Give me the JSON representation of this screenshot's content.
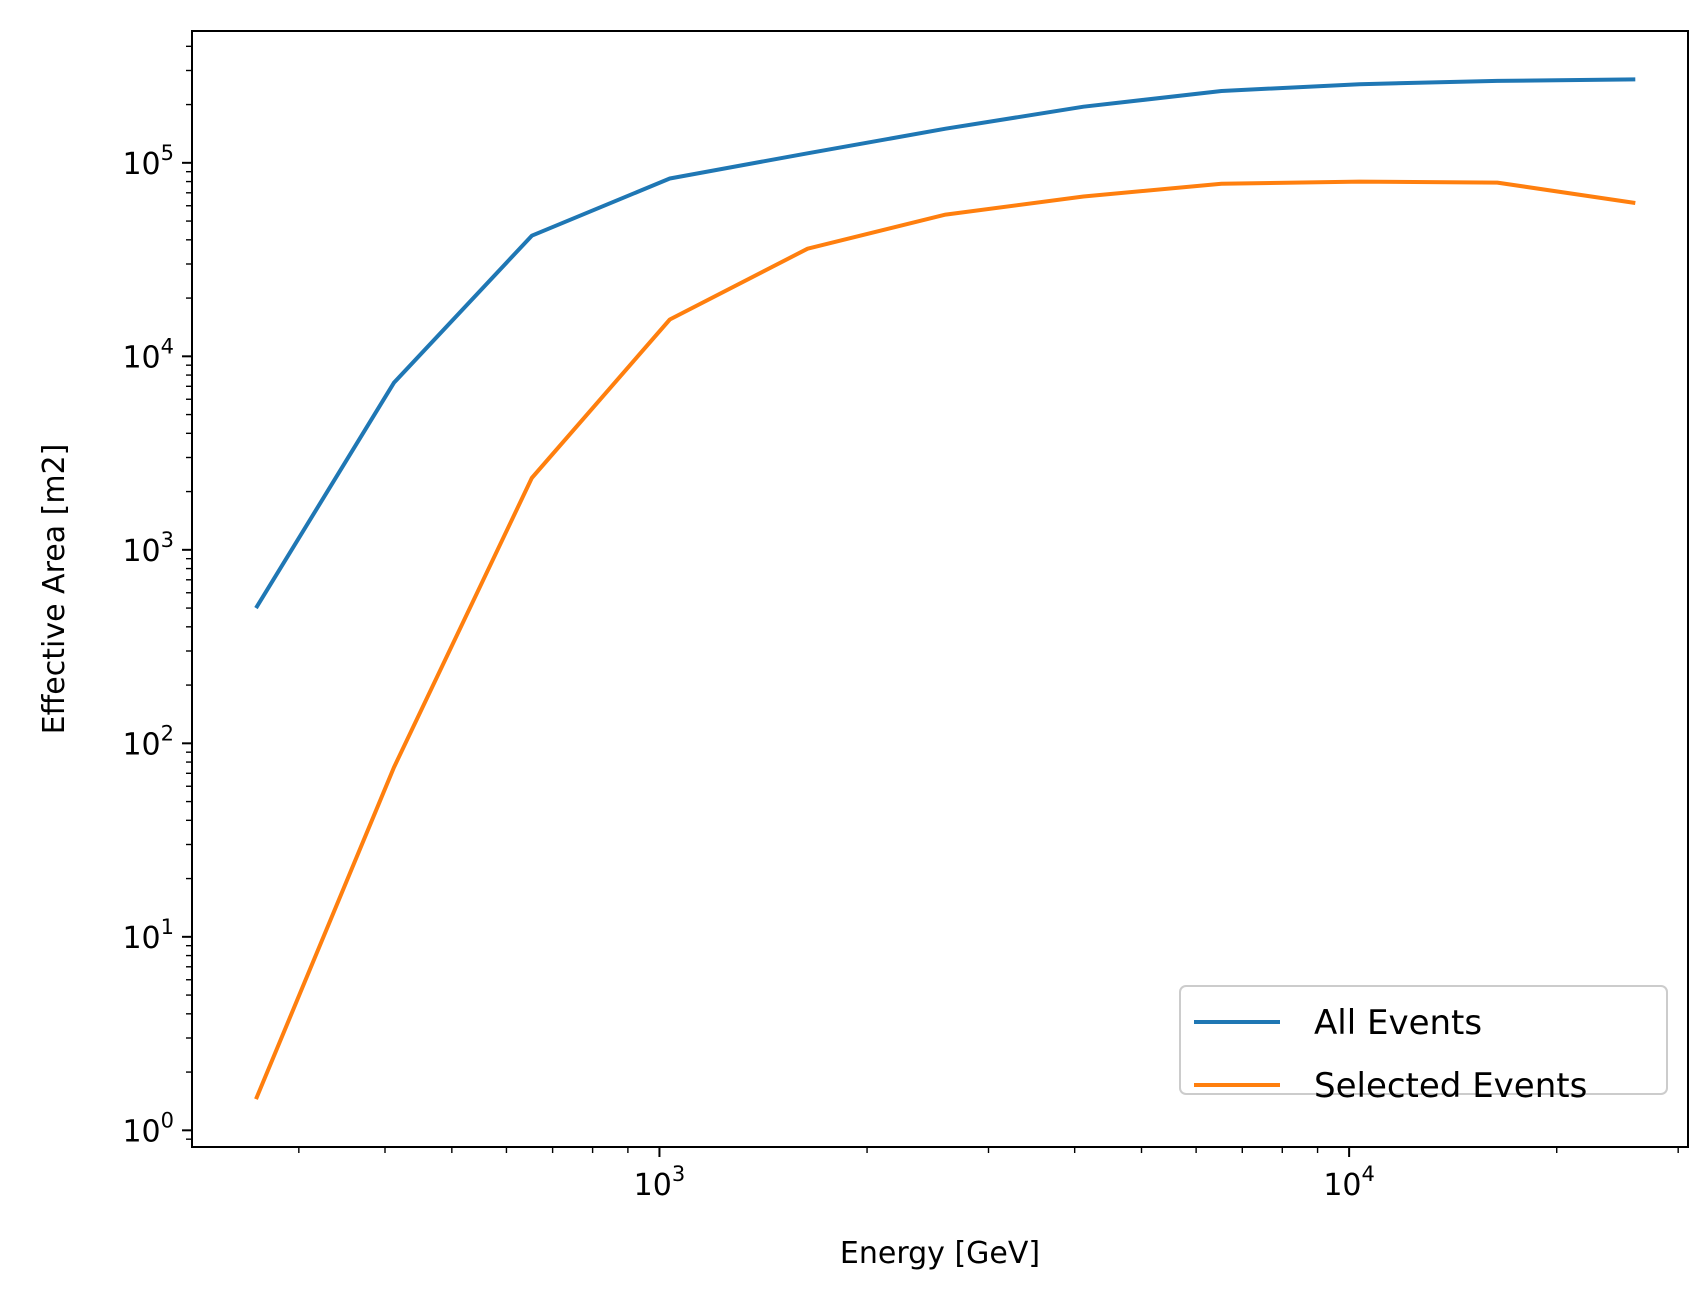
{
  "chart_data": {
    "type": "line",
    "xlabel": "Energy [GeV]",
    "ylabel": "Effective Area [m2]",
    "xscale": "log",
    "yscale": "log",
    "xlim": [
      210,
      31000
    ],
    "ylim": [
      0.82,
      480000
    ],
    "x_ticks": [
      {
        "value": 1000,
        "base": "10",
        "exp": "3"
      },
      {
        "value": 10000,
        "base": "10",
        "exp": "4"
      }
    ],
    "y_ticks": [
      {
        "value": 1,
        "base": "10",
        "exp": "0"
      },
      {
        "value": 10,
        "base": "10",
        "exp": "1"
      },
      {
        "value": 100,
        "base": "10",
        "exp": "2"
      },
      {
        "value": 1000,
        "base": "10",
        "exp": "3"
      },
      {
        "value": 10000,
        "base": "10",
        "exp": "4"
      },
      {
        "value": 100000,
        "base": "10",
        "exp": "5"
      }
    ],
    "grid": false,
    "legend_position": "lower-right",
    "series": [
      {
        "name": "All Events",
        "color": "#1f77b4",
        "x": [
          260,
          412,
          653,
          1035,
          1640,
          2600,
          4120,
          6530,
          10350,
          16400,
          26000
        ],
        "y": [
          500,
          7300,
          42000,
          83000,
          112000,
          150000,
          195000,
          235000,
          255000,
          265000,
          270000
        ]
      },
      {
        "name": "Selected Events",
        "color": "#ff7f0e",
        "x": [
          260,
          412,
          653,
          1035,
          1640,
          2600,
          4120,
          6530,
          10350,
          16400,
          26000
        ],
        "y": [
          1.45,
          75,
          2350,
          15500,
          36000,
          54000,
          67000,
          78000,
          80000,
          79000,
          62000
        ]
      }
    ]
  }
}
